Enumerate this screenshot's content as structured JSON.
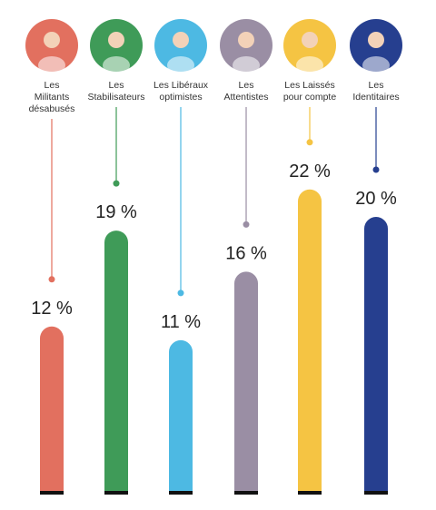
{
  "chart_data": {
    "type": "bar",
    "categories": [
      "Les\nMilitants\ndésabusés",
      "Les\nStabilisateurs",
      "Les Libéraux\noptimistes",
      "Les\nAttentistes",
      "Les Laissés\npour compte",
      "Les\nIdentitaires"
    ],
    "values": [
      12,
      19,
      11,
      16,
      22,
      20
    ],
    "value_labels": [
      "12 %",
      "19 %",
      "11 %",
      "16 %",
      "22 %",
      "20 %"
    ],
    "colors": [
      "#e2705f",
      "#3f9b58",
      "#4db9e3",
      "#9a8ea4",
      "#f5c443",
      "#263f8f"
    ]
  }
}
